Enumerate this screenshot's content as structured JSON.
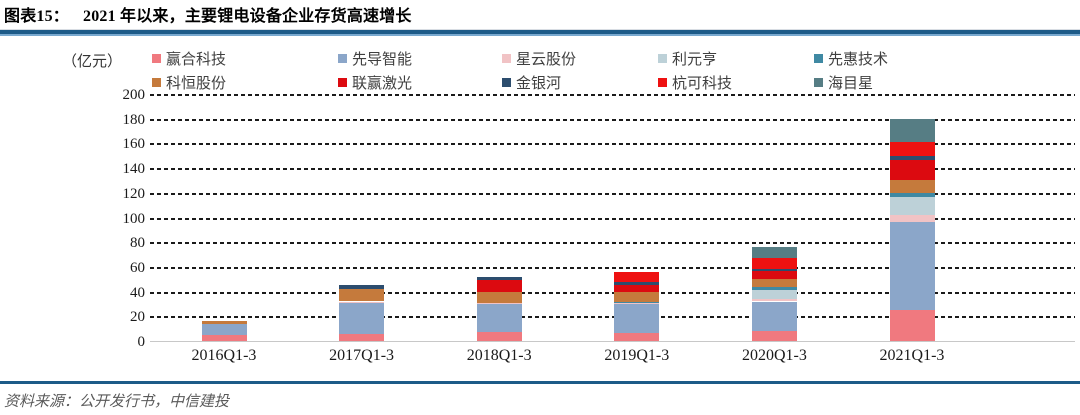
{
  "header": {
    "figure_label": "图表15：",
    "title": "2021 年以来，主要锂电设备企业存货高速增长"
  },
  "footer": {
    "source": "资料来源：公开发行书，中信建投"
  },
  "theme": {
    "divider_blue": "#1d5b88",
    "grid_color": "#1a1a1a",
    "axis_line_color": "#c8c8c8",
    "source_text_color": "#595959"
  },
  "chart_data": {
    "type": "bar",
    "stacked": true,
    "unit_label": "（亿元）",
    "categories": [
      "2016Q1-3",
      "2017Q1-3",
      "2018Q1-3",
      "2019Q1-3",
      "2020Q1-3",
      "2021Q1-3"
    ],
    "series": [
      {
        "name": "赢合科技",
        "color": "#f0797f",
        "values": [
          4.5,
          5.5,
          7.5,
          6.5,
          8.5,
          25
        ]
      },
      {
        "name": "先导智能",
        "color": "#8ba6c9",
        "values": [
          9.5,
          26,
          22.5,
          24,
          23.5,
          71
        ]
      },
      {
        "name": "星云股份",
        "color": "#f1c3c5",
        "values": [
          0,
          0.5,
          0.5,
          0.5,
          2,
          6
        ]
      },
      {
        "name": "利元亨",
        "color": "#bdd1d8",
        "values": [
          0,
          0,
          0,
          0,
          7.5,
          15
        ]
      },
      {
        "name": "先惠技术",
        "color": "#3f89a3",
        "values": [
          0,
          0,
          0,
          0.5,
          2,
          2.5
        ]
      },
      {
        "name": "科恒股份",
        "color": "#c57a3c",
        "values": [
          2.5,
          10.5,
          9.5,
          8.5,
          7,
          11
        ]
      },
      {
        "name": "联赢激光",
        "color": "#dc0a10",
        "values": [
          0,
          0,
          9.5,
          5.5,
          6,
          16
        ]
      },
      {
        "name": "金银河",
        "color": "#2c4d6e",
        "values": [
          0,
          2.5,
          2.5,
          2,
          1.5,
          3
        ]
      },
      {
        "name": "杭可科技",
        "color": "#ee1111",
        "values": [
          0,
          0,
          0,
          8,
          9,
          12
        ]
      },
      {
        "name": "海目星",
        "color": "#567d84",
        "values": [
          0,
          0,
          0,
          0,
          9.5,
          18.5
        ]
      }
    ],
    "totals": [
      16.5,
      45,
      52,
      55.5,
      76.5,
      180
    ],
    "ylim": [
      0,
      200
    ],
    "ytick_step": 20,
    "yticks": [
      0,
      20,
      40,
      60,
      80,
      100,
      120,
      140,
      160,
      180,
      200
    ],
    "legend_position": "top",
    "gridlines": "horizontal-dashed"
  }
}
